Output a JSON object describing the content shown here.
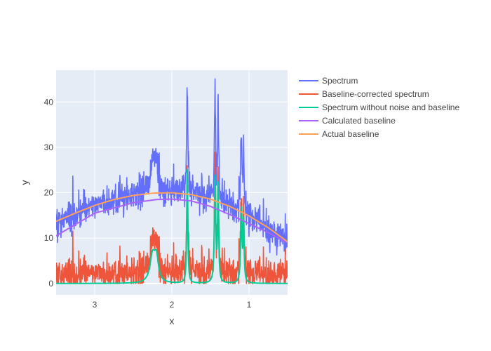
{
  "chart_data": {
    "type": "line",
    "title": "",
    "xlabel": "x",
    "ylabel": "y",
    "x_reversed": true,
    "xlim": [
      3.5,
      0.5
    ],
    "ylim": [
      -2.5,
      47
    ],
    "x_ticks": [
      3,
      2,
      1
    ],
    "y_ticks": [
      0,
      10,
      20,
      30,
      40
    ],
    "grid": true,
    "legend_position": "right",
    "colors": {
      "plot_bg": "#E5ECF6",
      "grid": "#ffffff",
      "spectrum": "#636EFA",
      "baseline_corrected": "#EF553B",
      "clean": "#00CC96",
      "calculated_baseline": "#AB63FA",
      "actual_baseline": "#FFA15A"
    },
    "peaks": [
      {
        "center": 2.25,
        "height": 6,
        "width": 0.04
      },
      {
        "center": 2.2,
        "height": 5,
        "width": 0.03
      },
      {
        "center": 1.8,
        "height": 25,
        "width": 0.008
      },
      {
        "center": 1.44,
        "height": 23,
        "width": 0.01
      },
      {
        "center": 1.4,
        "height": 21,
        "width": 0.008
      },
      {
        "center": 1.1,
        "height": 16,
        "width": 0.01
      },
      {
        "center": 1.07,
        "height": 13,
        "width": 0.008
      }
    ],
    "series": [
      {
        "key": "spectrum",
        "name": "Spectrum",
        "color": "#636EFA"
      },
      {
        "key": "baseline_corrected",
        "name": "Baseline-corrected spectrum",
        "color": "#EF553B"
      },
      {
        "key": "clean",
        "name": "Spectrum without noise and baseline",
        "color": "#00CC96"
      },
      {
        "key": "calculated_baseline",
        "name": "Calculated baseline",
        "color": "#AB63FA",
        "x": [
          3.5,
          3.0,
          2.5,
          2.2,
          2.0,
          1.75,
          1.5,
          1.25,
          1.0,
          0.75,
          0.5
        ],
        "y": [
          10.5,
          15.5,
          17.8,
          18.5,
          18.6,
          18.2,
          17.0,
          15.2,
          13.2,
          11.2,
          9.0
        ]
      },
      {
        "key": "actual_baseline",
        "name": "Actual baseline",
        "color": "#FFA15A",
        "x": [
          3.5,
          3.25,
          3.0,
          2.75,
          2.5,
          2.25,
          2.0,
          1.75,
          1.5,
          1.25,
          1.0,
          0.75,
          0.5
        ],
        "y": [
          13.7,
          15.5,
          17.2,
          18.5,
          19.4,
          19.9,
          20.0,
          19.6,
          18.6,
          17.0,
          14.9,
          12.3,
          9.2
        ]
      }
    ]
  }
}
